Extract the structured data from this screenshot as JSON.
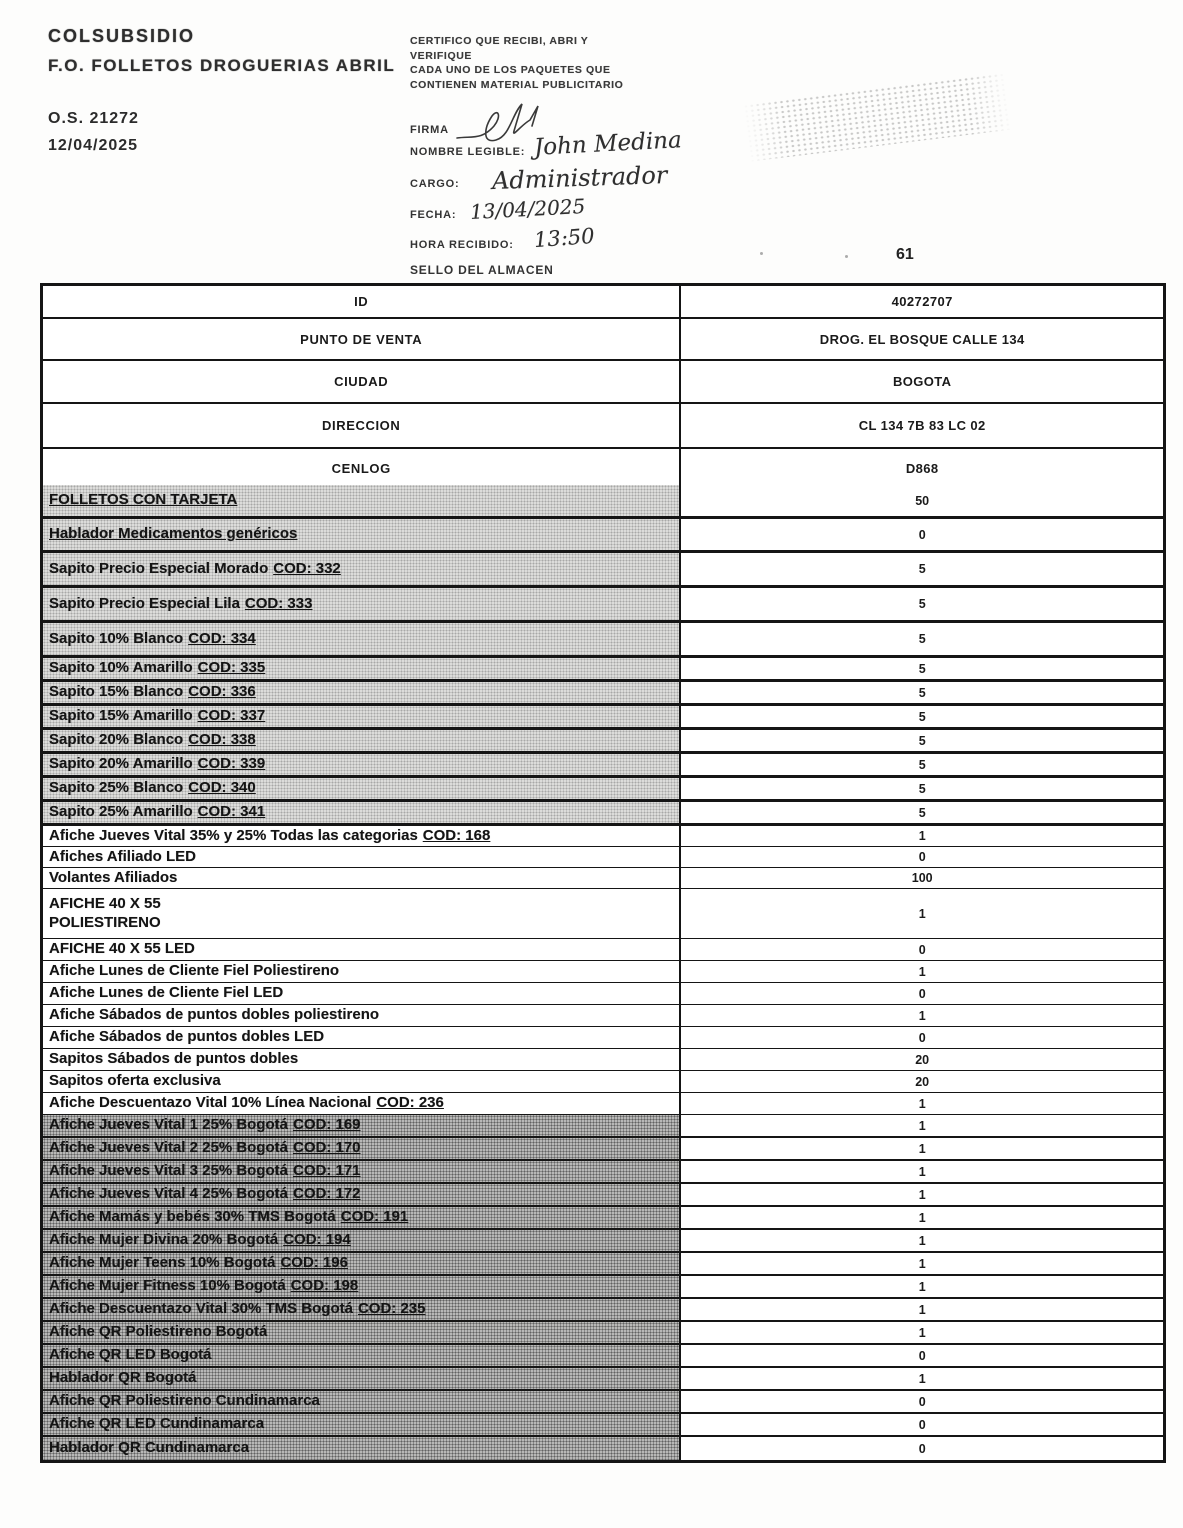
{
  "header": {
    "company": "COLSUBSIDIO",
    "subtitle": "F.O. FOLLETOS DROGUERIAS ABRIL",
    "order_number": "O.S. 21272",
    "order_date": "12/04/2025",
    "cert_line1": "CERTIFICO QUE RECIBI, ABRI Y",
    "cert_line2": "VERIFIQUE",
    "cert_line3": "CADA  UNO DE LOS PAQUETES QUE",
    "cert_line4": "CONTIENEN MATERIAL PUBLICITARIO",
    "firma_label": "FIRMA",
    "nombre_label": "NOMBRE LEGIBLE:",
    "nombre_value": "John Medina",
    "cargo_label": "CARGO:",
    "cargo_value": "Administrador",
    "fecha_label": "FECHA:",
    "fecha_value": "13/04/2025",
    "hora_label": "HORA RECIBIDO:",
    "hora_value": "13:50",
    "sello_label": "SELLO DEL ALMACEN",
    "page_number": "61",
    "stamp_icon": "faint-stamp-mark",
    "signature_icon": "handwritten-signature"
  },
  "info_table": {
    "rows": [
      {
        "label": "ID",
        "value": "40272707"
      },
      {
        "label": "PUNTO DE VENTA",
        "value": "DROG. EL BOSQUE CALLE 134"
      },
      {
        "label": "CIUDAD",
        "value": "BOGOTA"
      },
      {
        "label": "DIRECCION",
        "value": "CL 134 7B 83 LC 02"
      },
      {
        "label": "CENLOG",
        "value": "D868"
      }
    ]
  },
  "items": [
    {
      "label": "FOLLETOS CON TARJETA",
      "qty": "50",
      "shade": "light",
      "ul": true
    },
    {
      "label": "Hablador Medicamentos genéricos",
      "qty": "0",
      "shade": "light",
      "ul": true
    },
    {
      "label": "Sapito Precio Especial Morado",
      "cod": "COD: 332",
      "qty": "5",
      "shade": "light"
    },
    {
      "label": "Sapito Precio Especial Lila",
      "cod": "COD: 333",
      "qty": "5",
      "shade": "light"
    },
    {
      "label": "Sapito 10% Blanco",
      "cod": "COD: 334",
      "qty": "5",
      "shade": "light"
    },
    {
      "label": "Sapito 10% Amarillo",
      "cod": "COD: 335",
      "qty": "5",
      "shade": "light"
    },
    {
      "label": "Sapito 15% Blanco",
      "cod": "COD: 336",
      "qty": "5",
      "shade": "light"
    },
    {
      "label": "Sapito 15% Amarillo",
      "cod": "COD: 337",
      "qty": "5",
      "shade": "light"
    },
    {
      "label": "Sapito 20% Blanco",
      "cod": "COD: 338",
      "qty": "5",
      "shade": "light"
    },
    {
      "label": "Sapito 20% Amarillo",
      "cod": "COD: 339",
      "qty": "5",
      "shade": "light"
    },
    {
      "label": "Sapito 25% Blanco",
      "cod": "COD: 340",
      "qty": "5",
      "shade": "light"
    },
    {
      "label": "Sapito 25% Amarillo",
      "cod": "COD: 341",
      "qty": "5",
      "shade": "light"
    },
    {
      "label": "Afiche Jueves Vital  35% y 25% Todas las categorias",
      "cod": "COD: 168",
      "qty": "1",
      "shade": "none"
    },
    {
      "label": "Afiches Afiliado LED",
      "qty": "0",
      "shade": "none"
    },
    {
      "label": "Volantes Afiliados",
      "qty": "100",
      "shade": "none"
    },
    {
      "label": "AFICHE 40 X 55\nPOLIESTIRENO",
      "qty": "1",
      "shade": "none"
    },
    {
      "label": "AFICHE 40 X 55 LED",
      "qty": "0",
      "shade": "none"
    },
    {
      "label": "Afiche Lunes de Cliente Fiel Poliestireno",
      "qty": "1",
      "shade": "none"
    },
    {
      "label": "Afiche Lunes de Cliente Fiel LED",
      "qty": "0",
      "shade": "none"
    },
    {
      "label": "Afiche Sábados de puntos dobles poliestireno",
      "qty": "1",
      "shade": "none"
    },
    {
      "label": "Afiche Sábados de puntos dobles LED",
      "qty": "0",
      "shade": "none"
    },
    {
      "label": "Sapitos Sábados de puntos dobles",
      "qty": "20",
      "shade": "none"
    },
    {
      "label": "Sapitos oferta exclusiva",
      "qty": "20",
      "shade": "none"
    },
    {
      "label": "Afiche Descuentazo Vital 10% Línea Nacional",
      "cod": "COD: 236",
      "qty": "1",
      "shade": "none"
    },
    {
      "label": "Afiche Jueves Vital 1 25% Bogotá",
      "cod": "COD: 169",
      "qty": "1",
      "shade": "dark"
    },
    {
      "label": "Afiche Jueves Vital 2 25% Bogotá",
      "cod": "COD: 170",
      "qty": "1",
      "shade": "dark"
    },
    {
      "label": "Afiche Jueves Vital 3 25% Bogotá",
      "cod": "COD: 171",
      "qty": "1",
      "shade": "dark"
    },
    {
      "label": "Afiche Jueves Vital 4 25% Bogotá",
      "cod": "COD: 172",
      "qty": "1",
      "shade": "dark"
    },
    {
      "label": "Afiche Mamás y bebés 30% TMS Bogotá",
      "cod": "COD: 191",
      "qty": "1",
      "shade": "dark"
    },
    {
      "label": "Afiche Mujer Divina 20% Bogotá",
      "cod": "COD: 194",
      "qty": "1",
      "shade": "dark"
    },
    {
      "label": "Afiche Mujer Teens 10% Bogotá",
      "cod": "COD: 196",
      "qty": "1",
      "shade": "dark"
    },
    {
      "label": "Afiche Mujer Fitness 10% Bogotá",
      "cod": "COD: 198",
      "qty": "1",
      "shade": "dark"
    },
    {
      "label": "Afiche Descuentazo Vital 30% TMS Bogotá",
      "cod": "COD: 235",
      "qty": "1",
      "shade": "dark"
    },
    {
      "label": "Afiche QR Poliestireno Bogotá",
      "qty": "1",
      "shade": "dark"
    },
    {
      "label": "Afiche QR LED Bogotá",
      "qty": "0",
      "shade": "dark"
    },
    {
      "label": "Hablador QR Bogotá",
      "qty": "1",
      "shade": "dark"
    },
    {
      "label": "Afiche QR Poliestireno Cundinamarca",
      "qty": "0",
      "shade": "dark"
    },
    {
      "label": "Afiche QR LED Cundinamarca",
      "qty": "0",
      "shade": "dark"
    },
    {
      "label": "Hablador QR Cundinamarca",
      "qty": "0",
      "shade": "dark"
    }
  ]
}
